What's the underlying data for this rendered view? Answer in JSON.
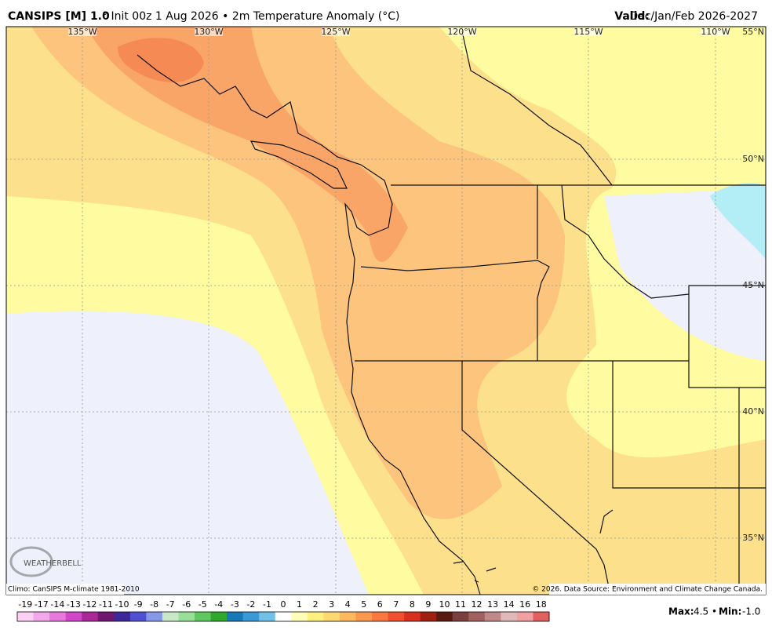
{
  "header": {
    "model": "CANSIPS [M] 1.0",
    "info": "° Init 00z 1 Aug 2026 • 2m Temperature Anomaly (°C)",
    "valid_label": "Valid:",
    "valid_value": "Dec/Jan/Feb 2026-2027"
  },
  "map": {
    "lon_labels": [
      "135°W",
      "130°W",
      "125°W",
      "120°W",
      "115°W",
      "110°W"
    ],
    "lat_labels": [
      "55°N",
      "50°N",
      "45°N",
      "40°N",
      "35°N"
    ],
    "logo": "WEATHERBELL"
  },
  "footer": {
    "climo": "Climo: CanSIPS M-climate 1981-2010",
    "source": "© 2026. Data Source: Environment and Climate Change Canada."
  },
  "colorbar": {
    "labels": [
      -19,
      -17,
      -14,
      -13,
      -12,
      -11,
      -10,
      -9,
      -8,
      -7,
      -6,
      -5,
      -4,
      -3,
      -2,
      -1,
      0,
      1,
      2,
      3,
      4,
      5,
      6,
      7,
      8,
      9,
      10,
      11,
      12,
      13,
      14,
      16,
      18
    ],
    "colors": [
      "#fcd0f4",
      "#f4a8ec",
      "#e878dc",
      "#d048c8",
      "#a82898",
      "#701870",
      "#3c2898",
      "#5050d0",
      "#8898e8",
      "#c8e8c8",
      "#98e098",
      "#60c860",
      "#30a830",
      "#1878b8",
      "#3898d8",
      "#70c0e8",
      "#ffffff",
      "#fffdb8",
      "#fff080",
      "#fed870",
      "#fdb860",
      "#fb9850",
      "#f87840",
      "#f05030",
      "#d83020",
      "#a02010",
      "#5a1a10",
      "#7a4040",
      "#a06060",
      "#c08888",
      "#e0b8b8",
      "#f0a0a0",
      "#e06060"
    ]
  },
  "stats": {
    "max_label": "Max:",
    "max_value": "4.5",
    "min_label": "Min:",
    "min_value": "-1.0"
  }
}
